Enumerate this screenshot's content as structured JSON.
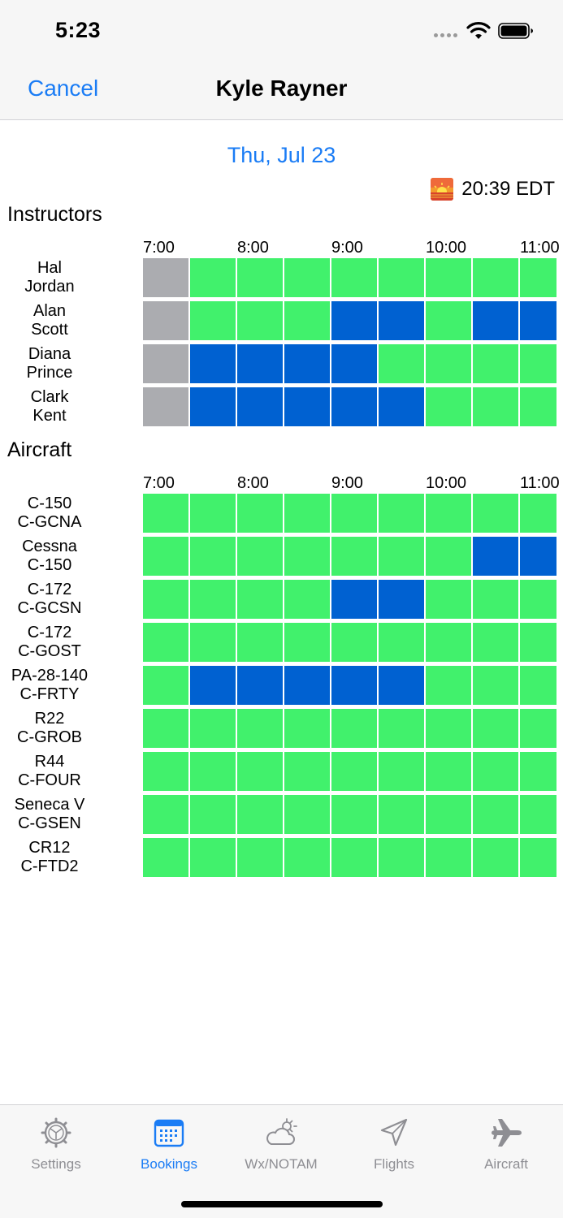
{
  "status_bar": {
    "time": "5:23",
    "colors": {
      "bar": "#f6f6f6"
    }
  },
  "nav": {
    "cancel_label": "Cancel",
    "title": "Kyle Rayner",
    "accent": "#1a7cf5"
  },
  "date_label": "Thu, Jul 23",
  "sunset": {
    "time": "20:39 EDT",
    "icon": "sunset-icon"
  },
  "legend_colors": {
    "available": "#41f16c",
    "booked": "#0061d1",
    "past": "#abacb0"
  },
  "instructors": {
    "title": "Instructors",
    "times": [
      "7:00",
      "8:00",
      "9:00",
      "10:00",
      "11:00"
    ],
    "rows": [
      {
        "line1": "Hal",
        "line2": "Jordan",
        "slots": [
          "past",
          "avail",
          "avail",
          "avail",
          "avail",
          "avail",
          "avail",
          "avail",
          "avail"
        ]
      },
      {
        "line1": "Alan",
        "line2": "Scott",
        "slots": [
          "past",
          "avail",
          "avail",
          "avail",
          "booked",
          "booked",
          "avail",
          "booked",
          "booked"
        ]
      },
      {
        "line1": "Diana",
        "line2": "Prince",
        "slots": [
          "past",
          "booked",
          "booked",
          "booked",
          "booked",
          "avail",
          "avail",
          "avail",
          "avail"
        ]
      },
      {
        "line1": "Clark",
        "line2": "Kent",
        "slots": [
          "past",
          "booked",
          "booked",
          "booked",
          "booked",
          "booked",
          "avail",
          "avail",
          "avail"
        ]
      }
    ]
  },
  "aircraft": {
    "title": "Aircraft",
    "times": [
      "7:00",
      "8:00",
      "9:00",
      "10:00",
      "11:00"
    ],
    "rows": [
      {
        "line1": "C-150",
        "line2": "C-GCNA",
        "slots": [
          "avail",
          "avail",
          "avail",
          "avail",
          "avail",
          "avail",
          "avail",
          "avail",
          "avail"
        ]
      },
      {
        "line1": "Cessna",
        "line2": "C-150",
        "slots": [
          "avail",
          "avail",
          "avail",
          "avail",
          "avail",
          "avail",
          "avail",
          "booked",
          "booked"
        ]
      },
      {
        "line1": "C-172",
        "line2": "C-GCSN",
        "slots": [
          "avail",
          "avail",
          "avail",
          "avail",
          "booked",
          "booked",
          "avail",
          "avail",
          "avail"
        ]
      },
      {
        "line1": "C-172",
        "line2": "C-GOST",
        "slots": [
          "avail",
          "avail",
          "avail",
          "avail",
          "avail",
          "avail",
          "avail",
          "avail",
          "avail"
        ]
      },
      {
        "line1": "PA-28-140",
        "line2": "C-FRTY",
        "slots": [
          "avail",
          "booked",
          "booked",
          "booked",
          "booked",
          "booked",
          "avail",
          "avail",
          "avail"
        ]
      },
      {
        "line1": "R22",
        "line2": "C-GROB",
        "slots": [
          "avail",
          "avail",
          "avail",
          "avail",
          "avail",
          "avail",
          "avail",
          "avail",
          "avail"
        ]
      },
      {
        "line1": "R44",
        "line2": "C-FOUR",
        "slots": [
          "avail",
          "avail",
          "avail",
          "avail",
          "avail",
          "avail",
          "avail",
          "avail",
          "avail"
        ]
      },
      {
        "line1": "Seneca V",
        "line2": "C-GSEN",
        "slots": [
          "avail",
          "avail",
          "avail",
          "avail",
          "avail",
          "avail",
          "avail",
          "avail",
          "avail"
        ]
      },
      {
        "line1": "CR12",
        "line2": "C-FTD2",
        "slots": [
          "avail",
          "avail",
          "avail",
          "avail",
          "avail",
          "avail",
          "avail",
          "avail",
          "avail"
        ]
      }
    ]
  },
  "tabs": [
    {
      "label": "Settings",
      "icon": "settings-gear-icon",
      "active": false
    },
    {
      "label": "Bookings",
      "icon": "calendar-icon",
      "active": true
    },
    {
      "label": "Wx/NOTAM",
      "icon": "weather-cloud-sun-icon",
      "active": false
    },
    {
      "label": "Flights",
      "icon": "paper-plane-icon",
      "active": false
    },
    {
      "label": "Aircraft",
      "icon": "airplane-icon",
      "active": false
    }
  ]
}
